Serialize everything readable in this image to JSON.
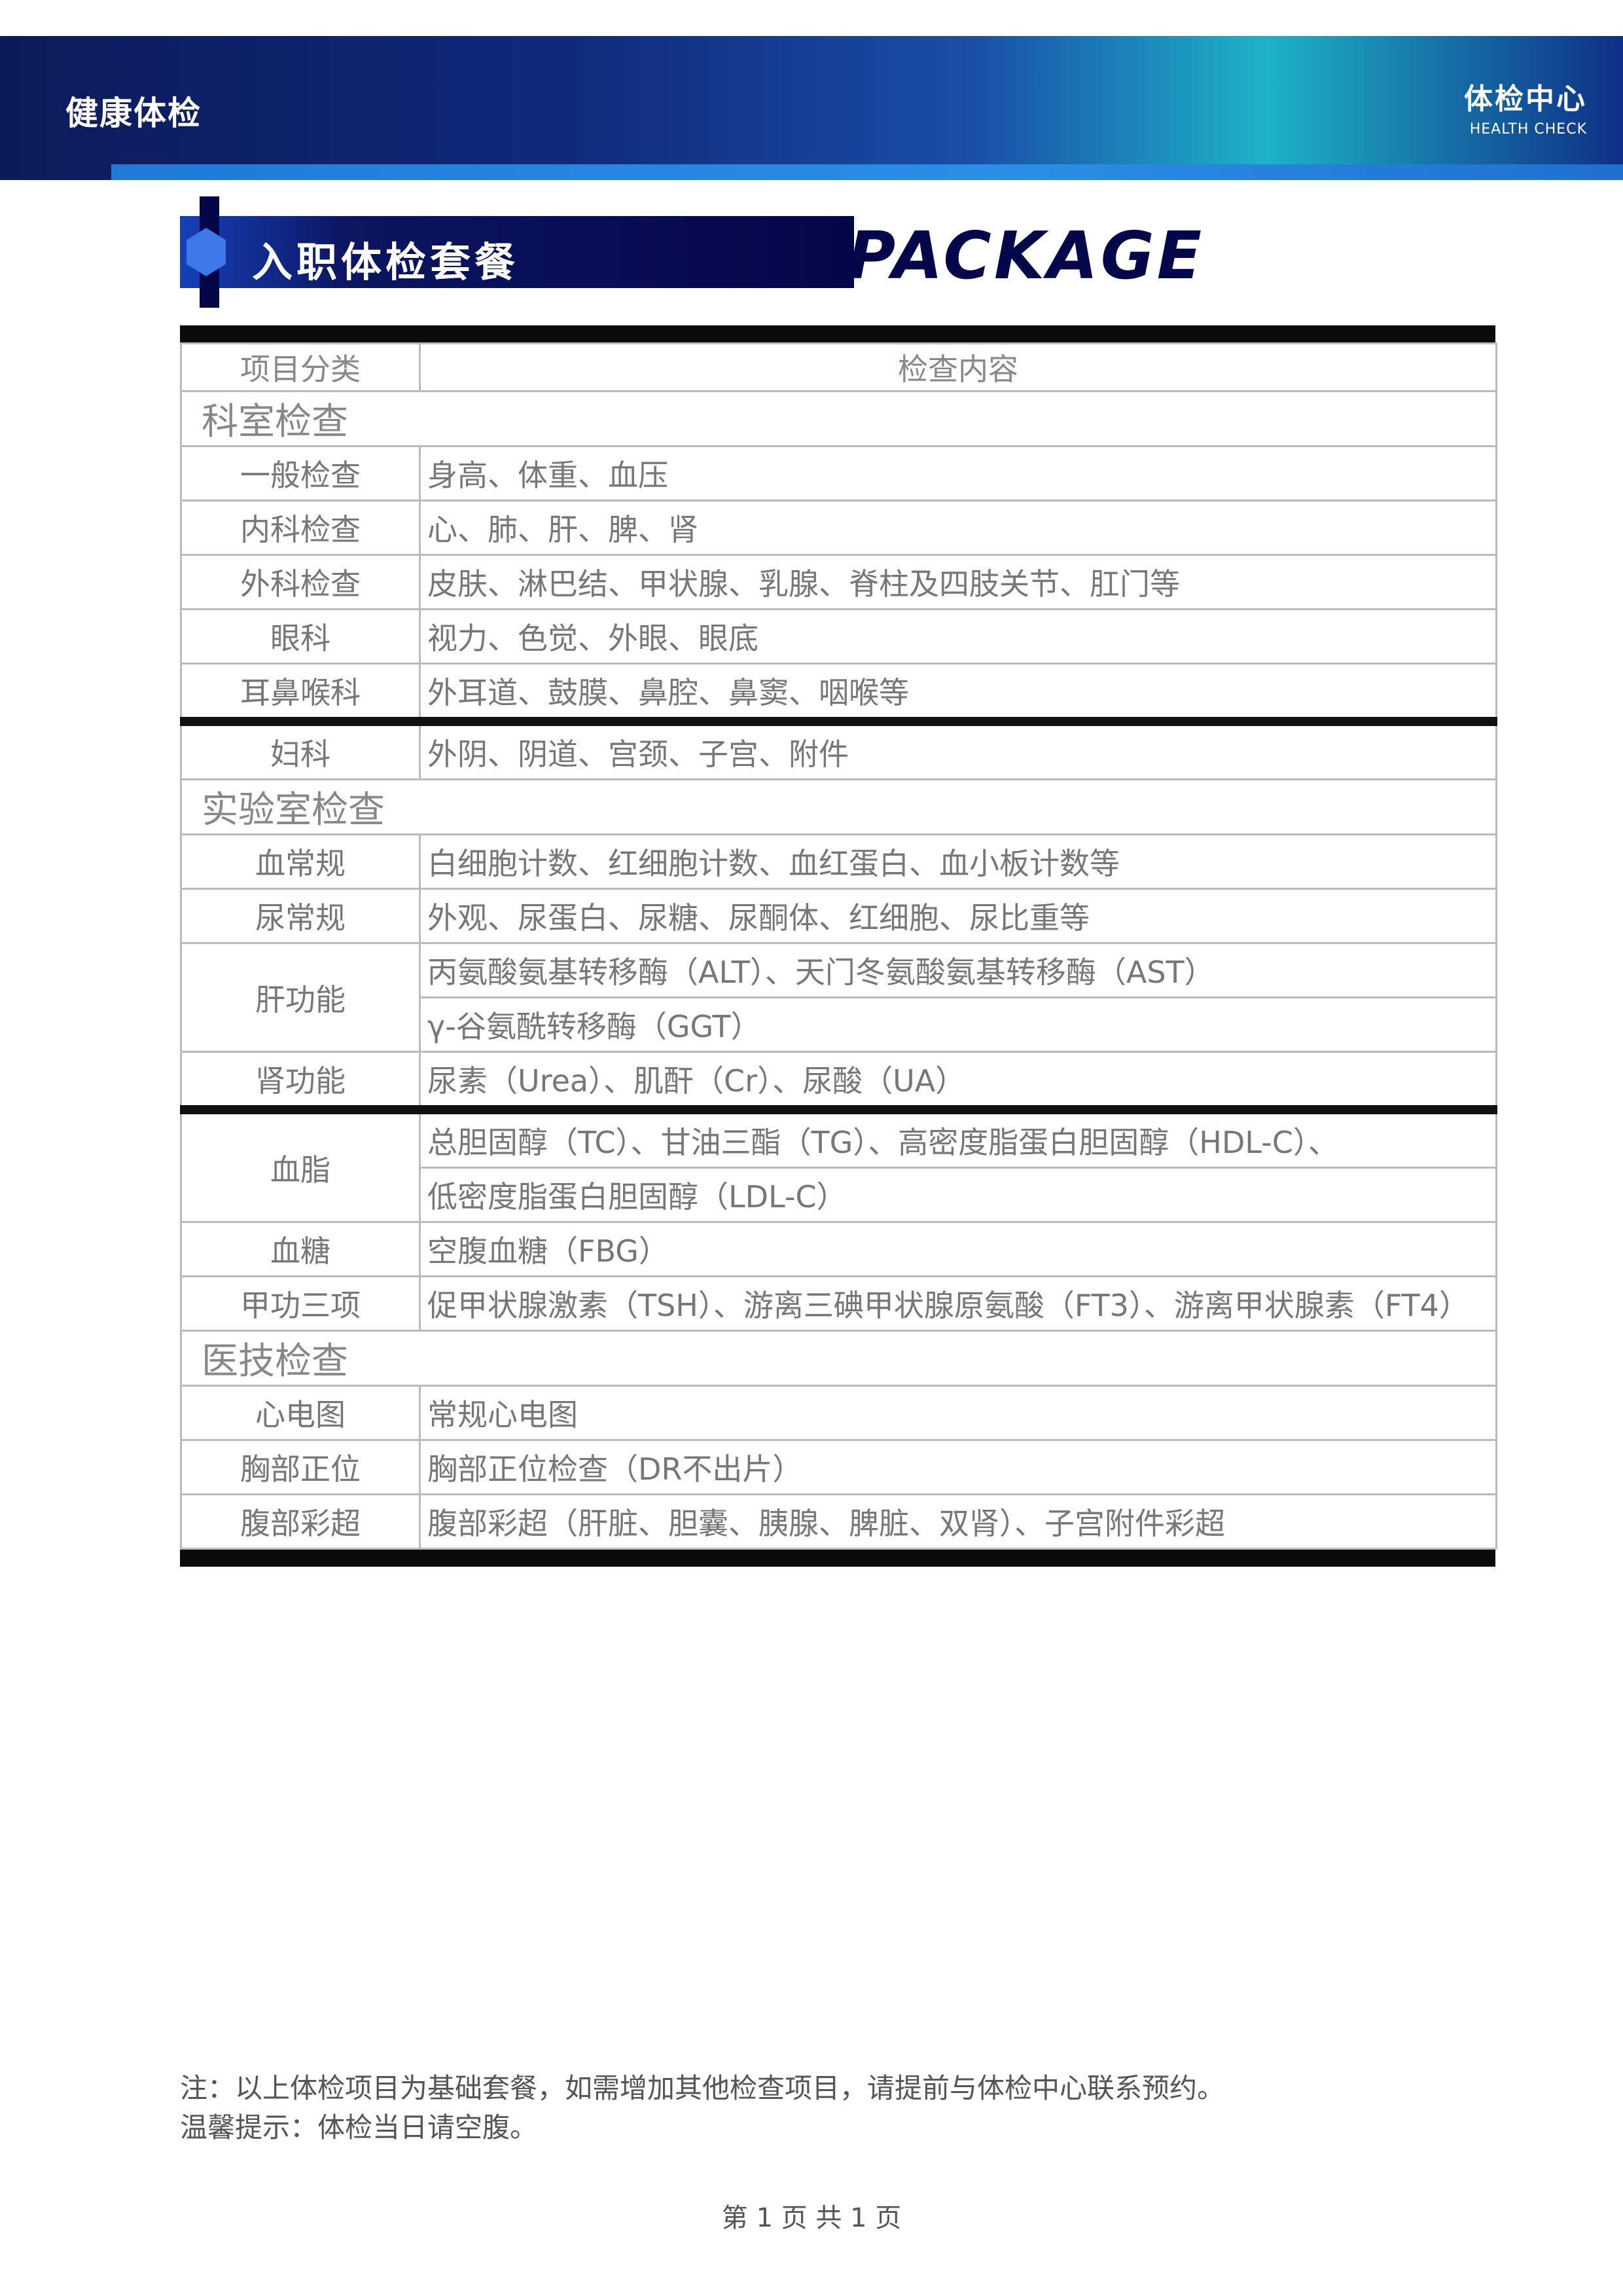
{
  "header": {
    "left_text": "健康体检",
    "right_cn": "体检中心",
    "right_en": "HEALTH CHECK"
  },
  "section": {
    "title": "入职体检套餐",
    "subtitle_en": "PACKAGE"
  },
  "table": {
    "headers": [
      "项目分类",
      "检查内容"
    ],
    "group_1": "科室检查",
    "group_2": "实验室检查",
    "group_3": "医技检查",
    "rows_1": [
      {
        "cat": "一般检查",
        "content": "身高、体重、血压"
      },
      {
        "cat": "内科检查",
        "content": "心、肺、肝、脾、肾"
      },
      {
        "cat": "外科检查",
        "content": "皮肤、淋巴结、甲状腺、乳腺、脊柱及四肢关节、肛门等"
      },
      {
        "cat": "眼科",
        "content": "视力、色觉、外眼、眼底"
      },
      {
        "cat": "耳鼻喉科",
        "content": "外耳道、鼓膜、鼻腔、鼻窦、咽喉等"
      },
      {
        "cat": "妇科",
        "content": "外阴、阴道、宫颈、子宫、附件"
      }
    ],
    "rows_2": [
      {
        "cat": "血常规",
        "content": "白细胞计数、红细胞计数、血红蛋白、血小板计数等"
      },
      {
        "cat": "尿常规",
        "content": "外观、尿蛋白、尿糖、尿酮体、红细胞、尿比重等"
      },
      {
        "cat": "肝功能",
        "content_a": "丙氨酸氨基转移酶（ALT）、天门冬氨酸氨基转移酶（AST）",
        "content_b": "γ-谷氨酰转移酶（GGT）"
      },
      {
        "cat": "肾功能",
        "content": "尿素（Urea）、肌酐（Cr）、尿酸（UA）"
      },
      {
        "cat": "血脂",
        "content_a": "总胆固醇（TC）、甘油三酯（TG）、高密度脂蛋白胆固醇（HDL-C）、",
        "content_b": "低密度脂蛋白胆固醇（LDL-C）"
      },
      {
        "cat": "血糖",
        "content": "空腹血糖（FBG）"
      },
      {
        "cat": "甲功三项",
        "content": "促甲状腺激素（TSH）、游离三碘甲状腺原氨酸（FT3）、游离甲状腺素（FT4）"
      }
    ],
    "rows_3": [
      {
        "cat": "心电图",
        "content": "常规心电图"
      },
      {
        "cat": "胸部正位",
        "content": "胸部正位检查（DR不出片）"
      },
      {
        "cat": "腹部彩超",
        "content": "腹部彩超（肝脏、胆囊、胰腺、脾脏、双肾）、子宫附件彩超"
      }
    ]
  },
  "notes": {
    "line_1": "注：以上体检项目为基础套餐，如需增加其他检查项目，请提前与体检中心联系预约。",
    "line_2": "温馨提示：体检当日请空腹。"
  },
  "page": {
    "number": "第 1 页 共 1 页"
  }
}
